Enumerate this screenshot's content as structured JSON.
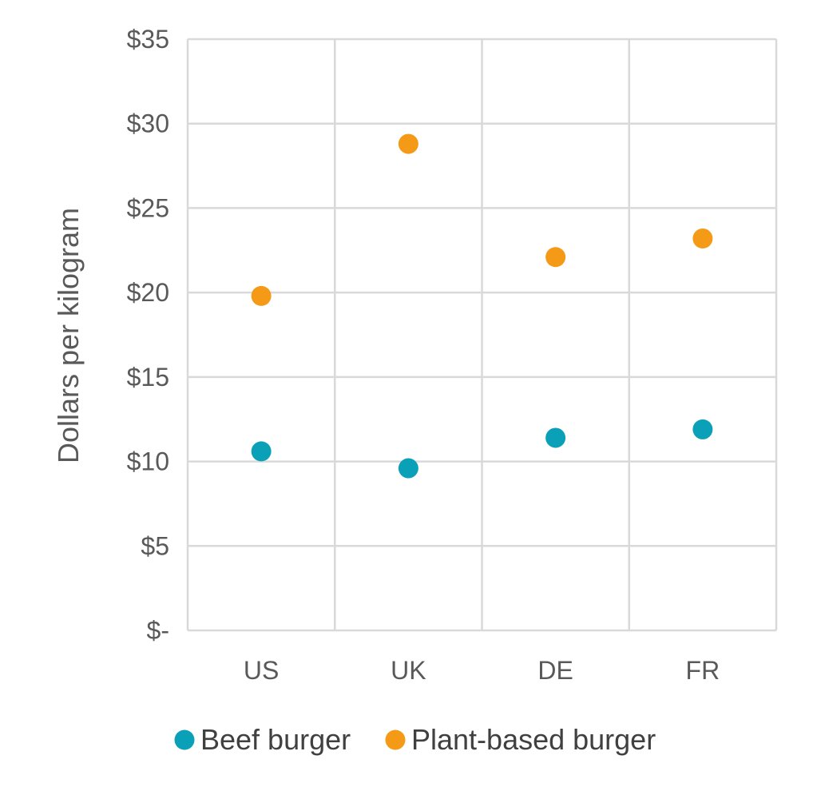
{
  "chart_data": {
    "type": "scatter",
    "categories": [
      "US",
      "UK",
      "DE",
      "FR"
    ],
    "series": [
      {
        "name": "Beef burger",
        "color": "#0aa1b8",
        "values": [
          10.6,
          9.6,
          11.4,
          11.9
        ]
      },
      {
        "name": "Plant-based burger",
        "color": "#f49a16",
        "values": [
          19.8,
          28.8,
          22.1,
          23.2
        ]
      }
    ],
    "ylabel": "Dollars per kilogram",
    "xlabel": "",
    "ylim": [
      0,
      35
    ],
    "yticks": [
      {
        "value": 0,
        "label": "$-"
      },
      {
        "value": 5,
        "label": "$5"
      },
      {
        "value": 10,
        "label": "$10"
      },
      {
        "value": 15,
        "label": "$15"
      },
      {
        "value": 20,
        "label": "$20"
      },
      {
        "value": 25,
        "label": "$25"
      },
      {
        "value": 30,
        "label": "$30"
      },
      {
        "value": 35,
        "label": "$35"
      }
    ],
    "grid": true,
    "legend": "bottom"
  }
}
